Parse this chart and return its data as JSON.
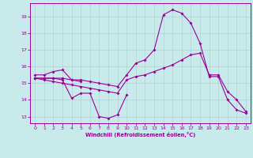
{
  "xlabel": "Windchill (Refroidissement éolien,°C)",
  "xlim": [
    -0.5,
    23.5
  ],
  "ylim": [
    12.6,
    19.8
  ],
  "yticks": [
    13,
    14,
    15,
    16,
    17,
    18,
    19
  ],
  "xticks": [
    0,
    1,
    2,
    3,
    4,
    5,
    6,
    7,
    8,
    9,
    10,
    11,
    12,
    13,
    14,
    15,
    16,
    17,
    18,
    19,
    20,
    21,
    22,
    23
  ],
  "bg_color": "#c8eaea",
  "line_color": "#990099",
  "grid_color": "#aacccc",
  "series": [
    {
      "x": [
        0,
        1,
        2,
        3,
        4,
        5,
        6,
        7,
        8,
        9,
        10
      ],
      "y": [
        15.3,
        15.3,
        15.3,
        15.2,
        14.1,
        14.4,
        14.4,
        13.0,
        12.9,
        13.1,
        14.3
      ]
    },
    {
      "x": [
        0,
        1,
        2,
        3,
        4,
        5
      ],
      "y": [
        15.5,
        15.5,
        15.7,
        15.8,
        15.2,
        15.1
      ]
    },
    {
      "x": [
        0,
        1,
        2,
        3,
        4,
        5,
        6,
        7,
        8,
        9,
        10,
        11,
        12,
        13,
        14,
        15,
        16,
        17,
        18,
        19,
        20,
        21,
        22,
        23
      ],
      "y": [
        15.3,
        15.3,
        15.3,
        15.3,
        15.2,
        15.2,
        15.1,
        15.0,
        14.9,
        14.8,
        15.5,
        16.2,
        16.4,
        17.0,
        19.1,
        19.4,
        19.2,
        18.6,
        17.4,
        15.4,
        15.4,
        14.0,
        13.4,
        13.2
      ]
    },
    {
      "x": [
        0,
        1,
        2,
        3,
        4,
        5,
        6,
        7,
        8,
        9,
        10,
        11,
        12,
        13,
        14,
        15,
        16,
        17,
        18,
        19,
        20,
        21,
        22,
        23
      ],
      "y": [
        15.3,
        15.2,
        15.1,
        15.0,
        14.9,
        14.8,
        14.7,
        14.6,
        14.5,
        14.4,
        15.2,
        15.4,
        15.5,
        15.7,
        15.9,
        16.1,
        16.4,
        16.7,
        16.8,
        15.5,
        15.5,
        14.5,
        14.0,
        13.3
      ]
    }
  ]
}
